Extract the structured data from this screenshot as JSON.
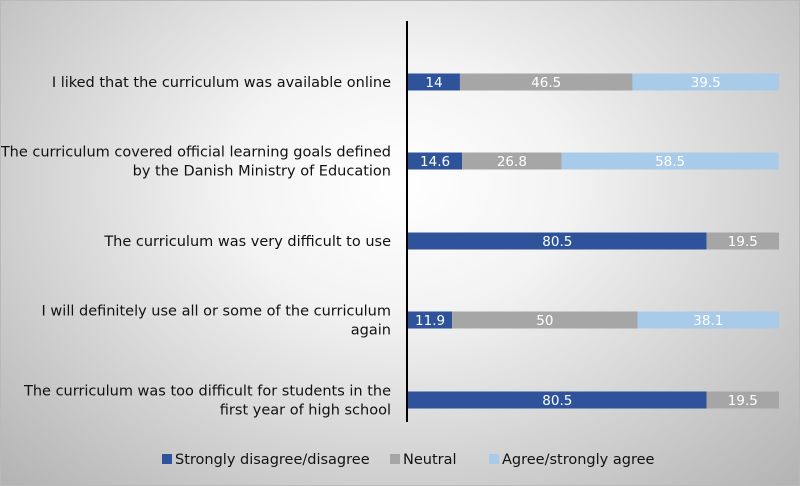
{
  "chart_data": {
    "type": "bar",
    "orientation": "horizontal",
    "stacked": true,
    "title": "",
    "xlabel": "",
    "ylabel": "",
    "xlim": [
      0,
      100
    ],
    "grid": false,
    "legend_position": "bottom",
    "categories": [
      [
        "I liked that the curriculum was available online"
      ],
      [
        "The curriculum covered official learning goals defined",
        "by the Danish Ministry of Education"
      ],
      [
        "The curriculum was very difficult to use"
      ],
      [
        "I will definitely use all or some of the curriculum",
        "again"
      ],
      [
        "The curriculum was too difficult for students in the",
        "first year of high school"
      ]
    ],
    "series": [
      {
        "name": "Strongly disagree/disagree",
        "color": "#2e539a",
        "values": [
          14,
          14.6,
          80.5,
          11.9,
          80.5
        ]
      },
      {
        "name": "Neutral",
        "color": "#a6a6a6",
        "values": [
          46.5,
          26.8,
          19.5,
          50,
          19.5
        ]
      },
      {
        "name": "Agree/strongly agree",
        "color": "#a9cbea",
        "values": [
          39.5,
          58.5,
          null,
          38.1,
          null
        ]
      }
    ]
  }
}
